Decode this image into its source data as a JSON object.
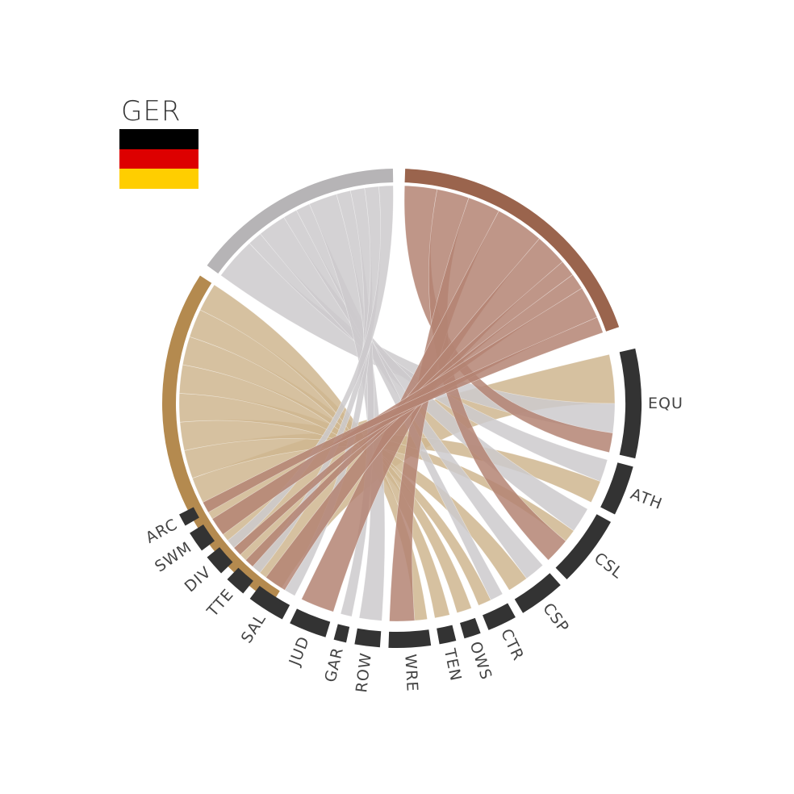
{
  "country": {
    "code": "GER",
    "flag_colors": [
      "#000000",
      "#DD0000",
      "#FFCE00"
    ]
  },
  "chart_data": {
    "type": "chord",
    "medals": [
      {
        "id": "gold",
        "color": "#B48A4F",
        "ribbon_color": "#CFB68F",
        "arc": [
          212,
          303
        ]
      },
      {
        "id": "silver",
        "color": "#B6B4B6",
        "ribbon_color": "#CCCACC",
        "arc": [
          306,
          359
        ]
      },
      {
        "id": "bronze",
        "color": "#9A644D",
        "ribbon_color": "#B48473",
        "arc": [
          2,
          71
        ]
      }
    ],
    "sports": [
      {
        "code": "EQU",
        "arc": [
          77,
          103
        ]
      },
      {
        "code": "ATH",
        "arc": [
          105,
          117
        ]
      },
      {
        "code": "CSL",
        "arc": [
          119,
          136
        ]
      },
      {
        "code": "CSP",
        "arc": [
          138,
          149
        ]
      },
      {
        "code": "CTR",
        "arc": [
          151,
          158
        ]
      },
      {
        "code": "OWS",
        "arc": [
          160,
          164
        ]
      },
      {
        "code": "TEN",
        "arc": [
          166,
          170
        ]
      },
      {
        "code": "WRE",
        "arc": [
          172,
          182
        ]
      },
      {
        "code": "ROW",
        "arc": [
          184,
          190
        ]
      },
      {
        "code": "GAR",
        "arc": [
          192,
          195
        ]
      },
      {
        "code": "JUD",
        "arc": [
          197,
          206
        ]
      },
      {
        "code": "SAL",
        "arc": [
          208,
          217
        ]
      },
      {
        "code": "TTE",
        "arc": [
          219,
          224
        ]
      },
      {
        "code": "DIV",
        "arc": [
          226,
          231
        ]
      },
      {
        "code": "SWM",
        "arc": [
          233,
          238
        ]
      },
      {
        "code": "ARC",
        "arc": [
          240,
          243
        ]
      }
    ],
    "links": [
      {
        "medal": "gold",
        "sport": "EQU",
        "count": 5
      },
      {
        "medal": "silver",
        "sport": "EQU",
        "count": 3
      },
      {
        "medal": "bronze",
        "sport": "EQU",
        "count": 2
      },
      {
        "medal": "silver",
        "sport": "ATH",
        "count": 1
      },
      {
        "medal": "gold",
        "sport": "ATH",
        "count": 1
      },
      {
        "medal": "silver",
        "sport": "CSL",
        "count": 2
      },
      {
        "medal": "gold",
        "sport": "CSL",
        "count": 1
      },
      {
        "medal": "bronze",
        "sport": "CSL",
        "count": 2
      },
      {
        "medal": "silver",
        "sport": "CSP",
        "count": 1
      },
      {
        "medal": "gold",
        "sport": "CSP",
        "count": 1
      },
      {
        "medal": "silver",
        "sport": "CTR",
        "count": 1
      },
      {
        "medal": "gold",
        "sport": "CTR",
        "count": 1
      },
      {
        "medal": "gold",
        "sport": "OWS",
        "count": 1
      },
      {
        "medal": "gold",
        "sport": "TEN",
        "count": 1
      },
      {
        "medal": "gold",
        "sport": "WRE",
        "count": 1
      },
      {
        "medal": "bronze",
        "sport": "WRE",
        "count": 2
      },
      {
        "medal": "silver",
        "sport": "ROW",
        "count": 2
      },
      {
        "medal": "silver",
        "sport": "GAR",
        "count": 1
      },
      {
        "medal": "bronze",
        "sport": "JUD",
        "count": 3
      },
      {
        "medal": "silver",
        "sport": "SAL",
        "count": 1
      },
      {
        "medal": "bronze",
        "sport": "SAL",
        "count": 2
      },
      {
        "medal": "silver",
        "sport": "TTE",
        "count": 1
      },
      {
        "medal": "bronze",
        "sport": "TTE",
        "count": 1
      },
      {
        "medal": "bronze",
        "sport": "DIV",
        "count": 1
      },
      {
        "medal": "silver",
        "sport": "DIV",
        "count": 1
      },
      {
        "medal": "bronze",
        "sport": "SWM",
        "count": 2
      },
      {
        "medal": "bronze",
        "sport": "ARC",
        "count": 1
      }
    ]
  }
}
